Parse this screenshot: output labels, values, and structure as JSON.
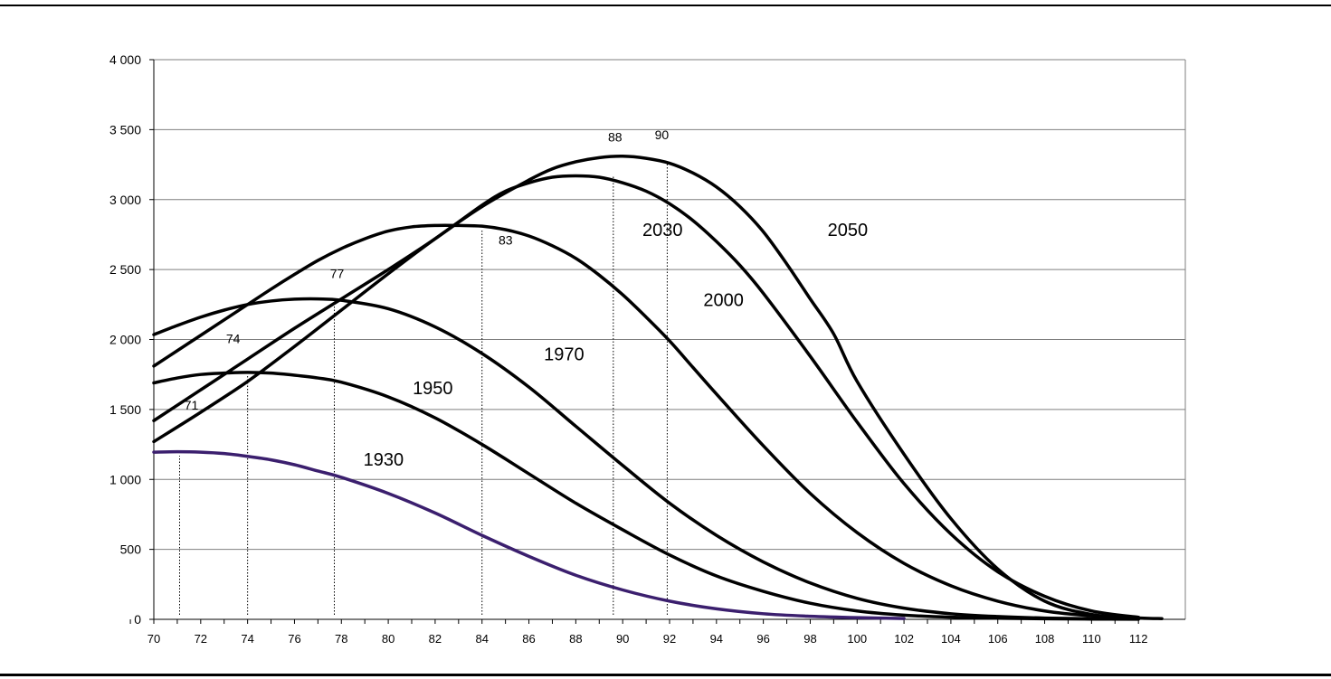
{
  "chart_data": {
    "type": "line",
    "title": "",
    "xlabel": "",
    "ylabel": "",
    "xlim": [
      70,
      114
    ],
    "ylim": [
      0,
      4000
    ],
    "grid": true,
    "x_ticks": [
      "70",
      "72",
      "74",
      "76",
      "78",
      "80",
      "82",
      "84",
      "86",
      "88",
      "90",
      "92",
      "94",
      "96",
      "98",
      "100",
      "102",
      "104",
      "106",
      "108",
      "110",
      "112"
    ],
    "y_ticks": [
      "0",
      "500",
      "1 000",
      "1 500",
      "2 000",
      "2 500",
      "3 000",
      "3 500",
      "4 000"
    ],
    "colors": {
      "line": "#000000",
      "series_1930": "#3b1f6e",
      "grid": "#7f7f7f"
    },
    "series": [
      {
        "name": "1930",
        "x": [
          70,
          71,
          72,
          73,
          74,
          75,
          76,
          77,
          78,
          80,
          82,
          84,
          86,
          88,
          90,
          92,
          94,
          96,
          98,
          100,
          102
        ],
        "values": [
          1195,
          1198,
          1195,
          1185,
          1165,
          1140,
          1105,
          1060,
          1015,
          900,
          760,
          600,
          450,
          315,
          210,
          130,
          75,
          40,
          22,
          12,
          6
        ]
      },
      {
        "name": "1950",
        "x": [
          70,
          71,
          72,
          73,
          74,
          75,
          76,
          77,
          78,
          80,
          82,
          84,
          86,
          88,
          90,
          92,
          94,
          96,
          98,
          100,
          102,
          104,
          106,
          108,
          110,
          112
        ],
        "values": [
          1690,
          1725,
          1750,
          1760,
          1765,
          1760,
          1745,
          1725,
          1695,
          1590,
          1440,
          1250,
          1040,
          830,
          640,
          460,
          310,
          200,
          115,
          60,
          30,
          15,
          8,
          4,
          2,
          1
        ]
      },
      {
        "name": "1970",
        "x": [
          70,
          71,
          72,
          73,
          74,
          75,
          76,
          77,
          78,
          80,
          82,
          84,
          86,
          88,
          90,
          92,
          94,
          96,
          98,
          100,
          102,
          104,
          106,
          108,
          110,
          112
        ],
        "values": [
          2035,
          2100,
          2160,
          2210,
          2250,
          2275,
          2288,
          2290,
          2280,
          2220,
          2090,
          1900,
          1660,
          1380,
          1100,
          830,
          600,
          410,
          260,
          150,
          80,
          40,
          20,
          9,
          4,
          2
        ]
      },
      {
        "name": "2000",
        "x": [
          70,
          71,
          72,
          73,
          74,
          75,
          76,
          77,
          78,
          79,
          80,
          81,
          82,
          83,
          84,
          85,
          86,
          87,
          88,
          89,
          90,
          91,
          92,
          93,
          94,
          96,
          98,
          100,
          102,
          104,
          106,
          108,
          110,
          112
        ],
        "values": [
          1810,
          1920,
          2030,
          2140,
          2250,
          2360,
          2465,
          2565,
          2650,
          2720,
          2775,
          2805,
          2815,
          2815,
          2810,
          2785,
          2740,
          2670,
          2580,
          2460,
          2320,
          2160,
          1990,
          1800,
          1610,
          1240,
          900,
          620,
          400,
          240,
          130,
          60,
          25,
          10
        ]
      },
      {
        "name": "2030",
        "x": [
          70,
          72,
          74,
          76,
          78,
          80,
          82,
          84,
          85,
          86,
          87,
          88,
          89,
          90,
          91,
          92,
          93,
          94,
          95,
          96,
          98,
          100,
          102,
          104,
          106,
          108,
          110,
          112
        ],
        "values": [
          1420,
          1640,
          1860,
          2080,
          2290,
          2500,
          2720,
          2960,
          3060,
          3120,
          3160,
          3170,
          3160,
          3120,
          3060,
          2970,
          2850,
          2700,
          2530,
          2330,
          1880,
          1410,
          970,
          610,
          340,
          165,
          60,
          15
        ]
      },
      {
        "name": "2050",
        "x": [
          70,
          72,
          74,
          76,
          78,
          80,
          82,
          84,
          86,
          87,
          88,
          89,
          90,
          91,
          92,
          93,
          94,
          95,
          96,
          97,
          98,
          99,
          100,
          102,
          104,
          106,
          108,
          110,
          112,
          113
        ],
        "values": [
          1270,
          1480,
          1700,
          1950,
          2210,
          2470,
          2720,
          2950,
          3140,
          3220,
          3270,
          3300,
          3310,
          3295,
          3260,
          3190,
          3090,
          2950,
          2770,
          2540,
          2290,
          2040,
          1700,
          1180,
          720,
          360,
          130,
          35,
          10,
          5
        ]
      }
    ],
    "series_labels": [
      {
        "series": "1930",
        "text": "1930"
      },
      {
        "series": "1950",
        "text": "1950"
      },
      {
        "series": "1970",
        "text": "1970"
      },
      {
        "series": "2000",
        "text": "2000"
      },
      {
        "series": "2030",
        "text": "2030"
      },
      {
        "series": "2050",
        "text": "2050"
      }
    ],
    "peak_markers": [
      {
        "label": "71",
        "x": 71.1
      },
      {
        "label": "74",
        "x": 74.0
      },
      {
        "label": "77",
        "x": 77.7
      },
      {
        "label": "83",
        "x": 84.0
      },
      {
        "label": "88",
        "x": 89.6
      },
      {
        "label": "90",
        "x": 91.9
      }
    ]
  }
}
